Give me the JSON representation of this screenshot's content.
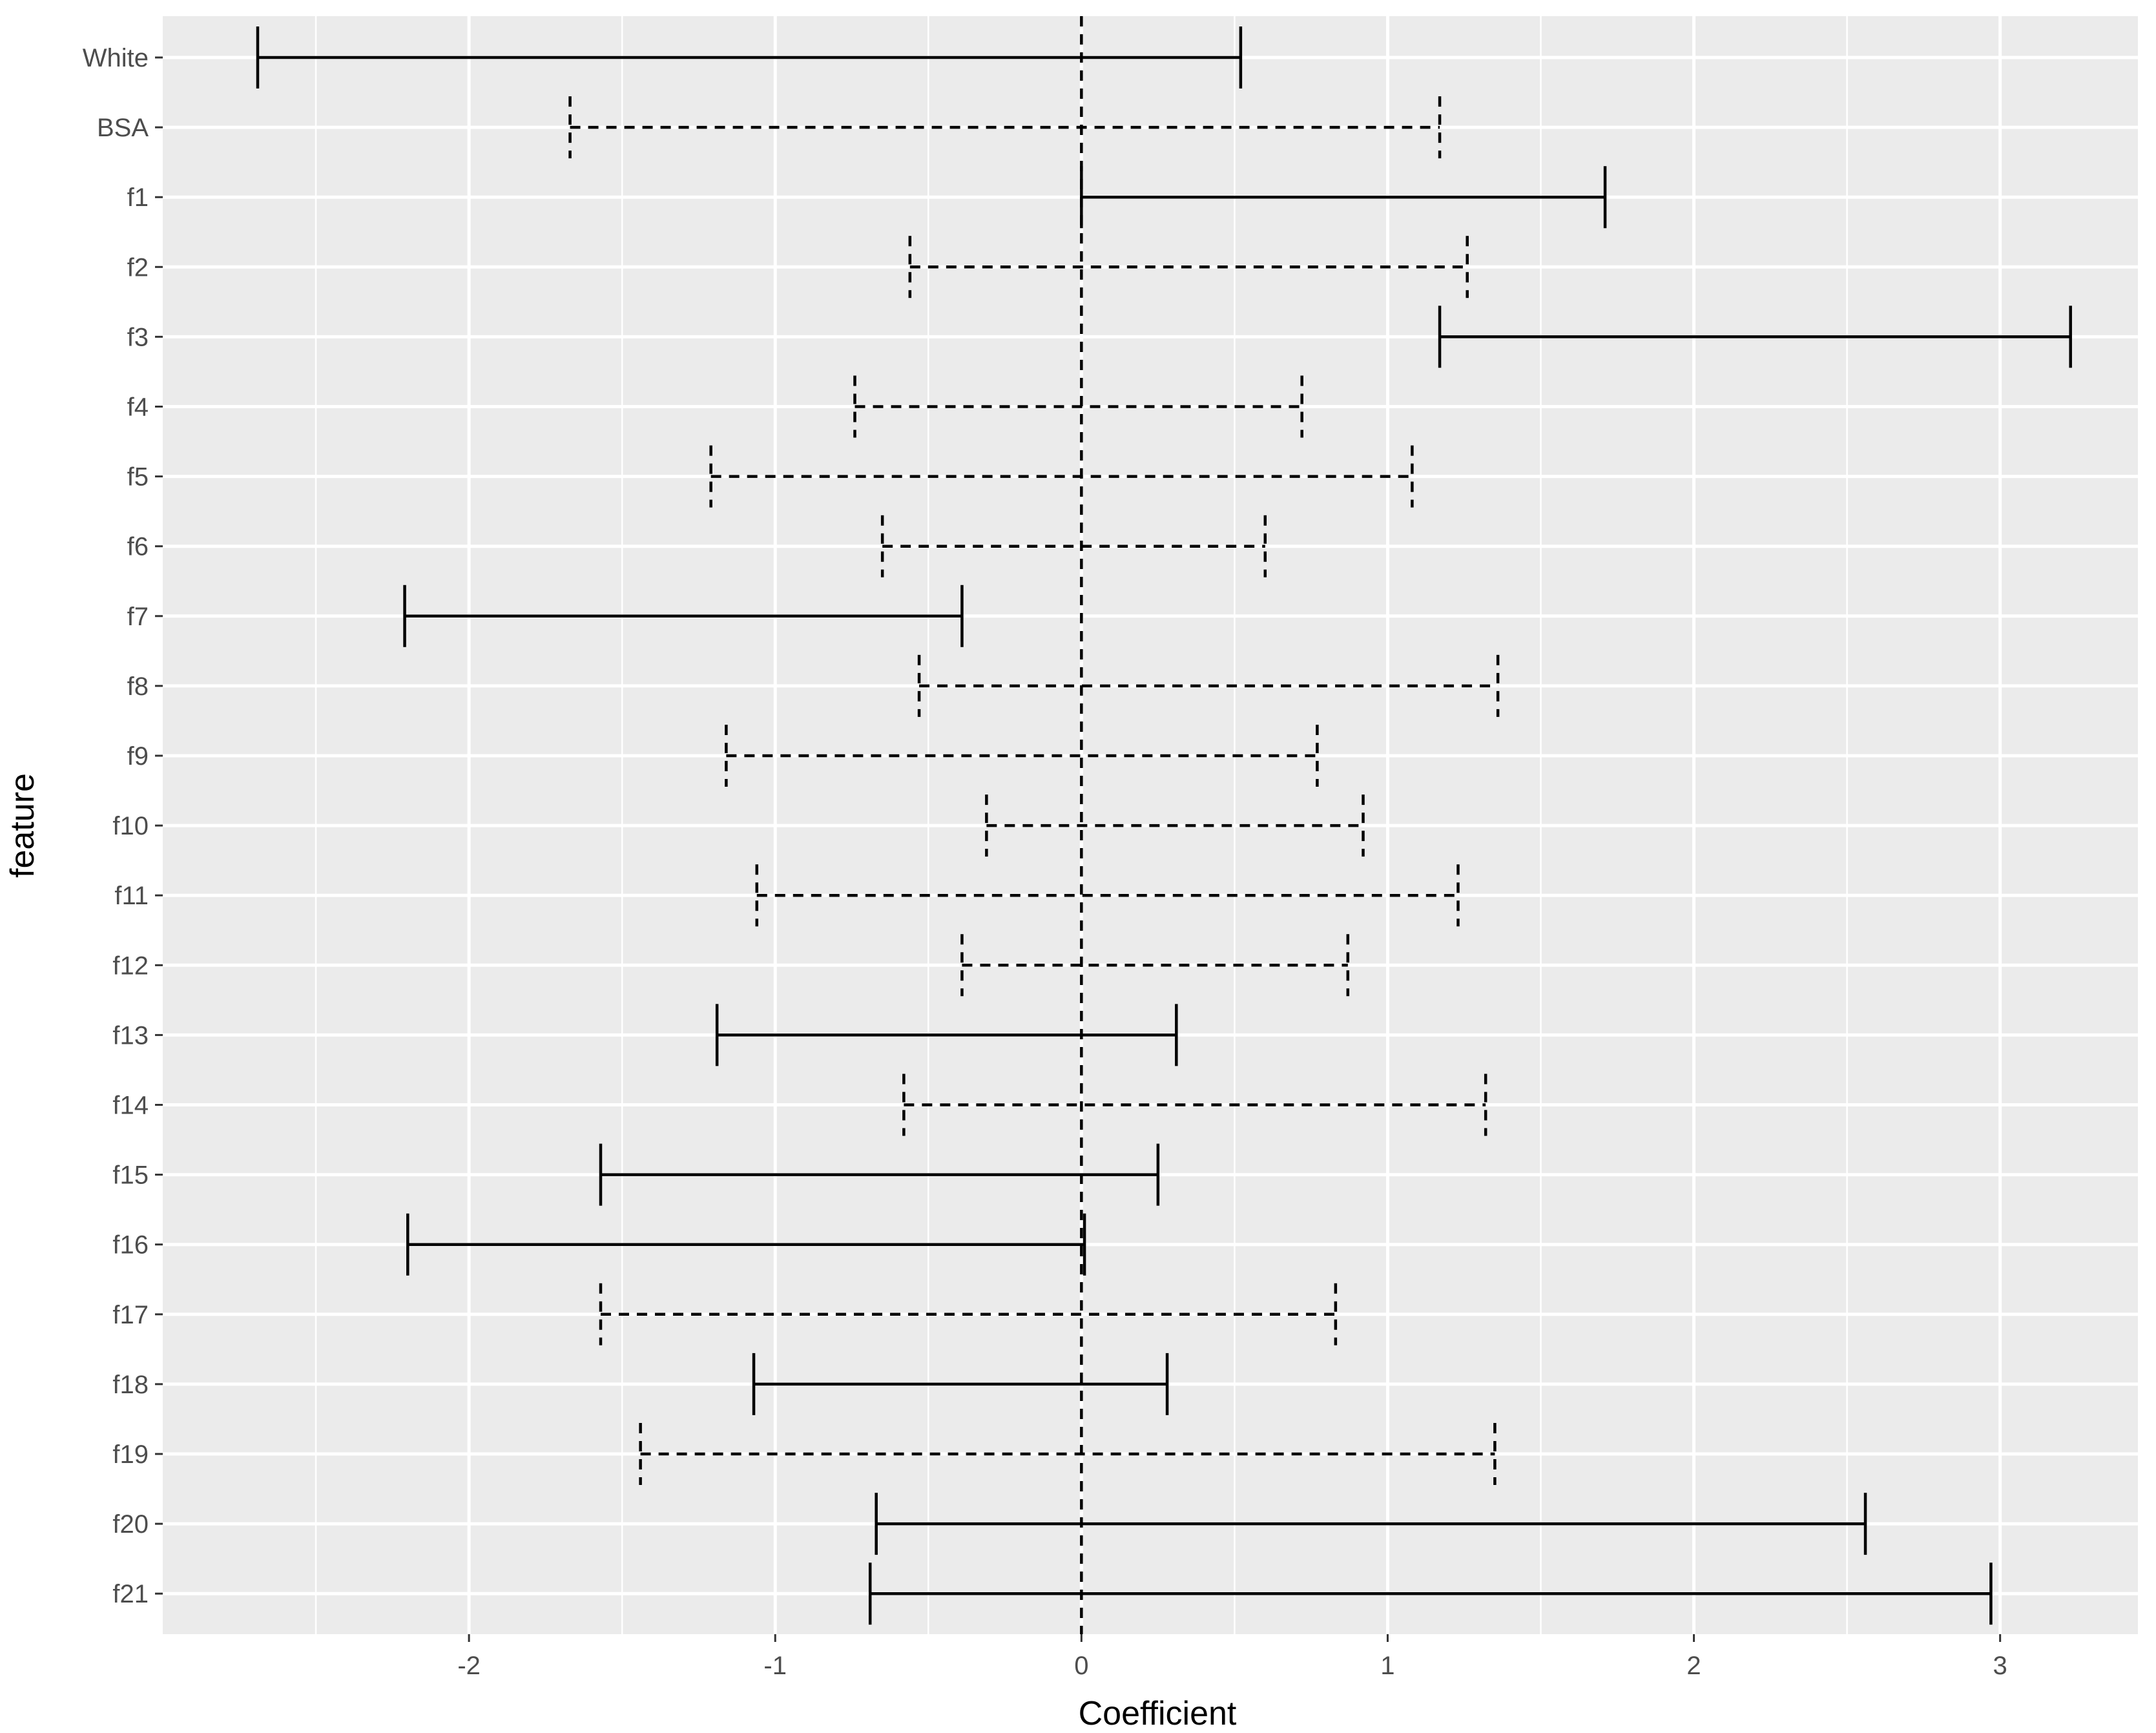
{
  "chart_data": {
    "type": "errorbar",
    "xlabel": "Coefficient",
    "ylabel": "feature",
    "xlim": [
      -3.0,
      3.45
    ],
    "xticks": [
      -2,
      -1,
      0,
      1,
      2,
      3
    ],
    "xtick_labels": [
      "-2",
      "-1",
      "0",
      "1",
      "2",
      "3"
    ],
    "reference_line": {
      "x": 0,
      "style": "dashed"
    },
    "grid": true,
    "background": "#ebebeb",
    "grid_color": "#ffffff",
    "line_color": "#000000",
    "intervals": [
      {
        "feature": "White",
        "lower": -2.69,
        "upper": 0.52,
        "style": "solid"
      },
      {
        "feature": "BSA",
        "lower": -1.67,
        "upper": 1.17,
        "style": "dashed"
      },
      {
        "feature": "f1",
        "lower": 0.0,
        "upper": 1.71,
        "style": "solid"
      },
      {
        "feature": "f2",
        "lower": -0.56,
        "upper": 1.26,
        "style": "dashed"
      },
      {
        "feature": "f3",
        "lower": 1.17,
        "upper": 3.23,
        "style": "solid"
      },
      {
        "feature": "f4",
        "lower": -0.74,
        "upper": 0.72,
        "style": "dashed"
      },
      {
        "feature": "f5",
        "lower": -1.21,
        "upper": 1.08,
        "style": "dashed"
      },
      {
        "feature": "f6",
        "lower": -0.65,
        "upper": 0.6,
        "style": "dashed"
      },
      {
        "feature": "f7",
        "lower": -2.21,
        "upper": -0.39,
        "style": "solid"
      },
      {
        "feature": "f8",
        "lower": -0.53,
        "upper": 1.36,
        "style": "dashed"
      },
      {
        "feature": "f9",
        "lower": -1.16,
        "upper": 0.77,
        "style": "dashed"
      },
      {
        "feature": "f10",
        "lower": -0.31,
        "upper": 0.92,
        "style": "dashed"
      },
      {
        "feature": "f11",
        "lower": -1.06,
        "upper": 1.23,
        "style": "dashed"
      },
      {
        "feature": "f12",
        "lower": -0.39,
        "upper": 0.87,
        "style": "dashed"
      },
      {
        "feature": "f13",
        "lower": -1.19,
        "upper": 0.31,
        "style": "solid"
      },
      {
        "feature": "f14",
        "lower": -0.58,
        "upper": 1.32,
        "style": "dashed"
      },
      {
        "feature": "f15",
        "lower": -1.57,
        "upper": 0.25,
        "style": "solid"
      },
      {
        "feature": "f16",
        "lower": -2.2,
        "upper": 0.01,
        "style": "solid"
      },
      {
        "feature": "f17",
        "lower": -1.57,
        "upper": 0.83,
        "style": "dashed"
      },
      {
        "feature": "f18",
        "lower": -1.07,
        "upper": 0.28,
        "style": "solid"
      },
      {
        "feature": "f19",
        "lower": -1.44,
        "upper": 1.35,
        "style": "dashed"
      },
      {
        "feature": "f20",
        "lower": -0.67,
        "upper": 2.56,
        "style": "solid"
      },
      {
        "feature": "f21",
        "lower": -0.69,
        "upper": 2.97,
        "style": "solid"
      }
    ]
  }
}
